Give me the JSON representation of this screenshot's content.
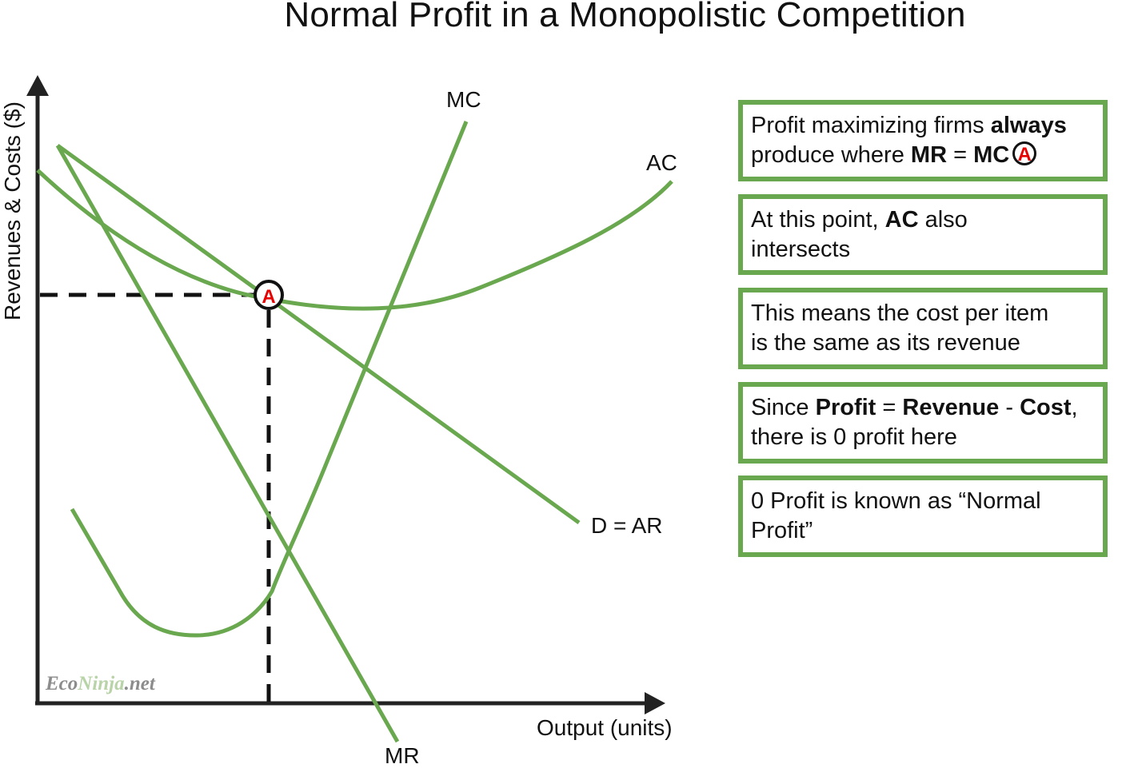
{
  "title": "Normal Profit in a Monopolistic Competition",
  "axes": {
    "y_label": "Revenues & Costs ($)",
    "x_label": "Output (units)"
  },
  "curves": {
    "mc": "MC",
    "ac": "AC",
    "demand": "D = AR",
    "mr": "MR"
  },
  "point_a": "A",
  "watermark": {
    "part1": "Eco",
    "part2": "Ninja",
    "part3": ".net"
  },
  "boxes": [
    {
      "segments": [
        {
          "t": "Profit maximizing firms ",
          "b": false
        },
        {
          "t": "always",
          "b": true
        },
        {
          "t": "\nproduce where ",
          "b": false
        },
        {
          "t": "MR",
          "b": true
        },
        {
          "t": " = ",
          "b": false
        },
        {
          "t": "MC",
          "b": true
        }
      ],
      "badge": "A"
    },
    {
      "segments": [
        {
          "t": "At this point, ",
          "b": false
        },
        {
          "t": "AC",
          "b": true
        },
        {
          "t": " also\nintersects",
          "b": false
        }
      ]
    },
    {
      "segments": [
        {
          "t": "This means the cost per item\nis the same as its revenue",
          "b": false
        }
      ]
    },
    {
      "segments": [
        {
          "t": "Since ",
          "b": false
        },
        {
          "t": "Profit",
          "b": true
        },
        {
          "t": " = ",
          "b": false
        },
        {
          "t": "Revenue",
          "b": true
        },
        {
          "t": " - ",
          "b": false
        },
        {
          "t": "Cost",
          "b": true
        },
        {
          "t": ",\nthere is 0 profit here",
          "b": false
        }
      ]
    },
    {
      "segments": [
        {
          "t": "0 Profit is known as “Normal\nProfit”",
          "b": false
        }
      ]
    }
  ],
  "colors": {
    "curve": "#6aa84f",
    "box_border": "#6aa84f",
    "point_label": "#e60000"
  }
}
